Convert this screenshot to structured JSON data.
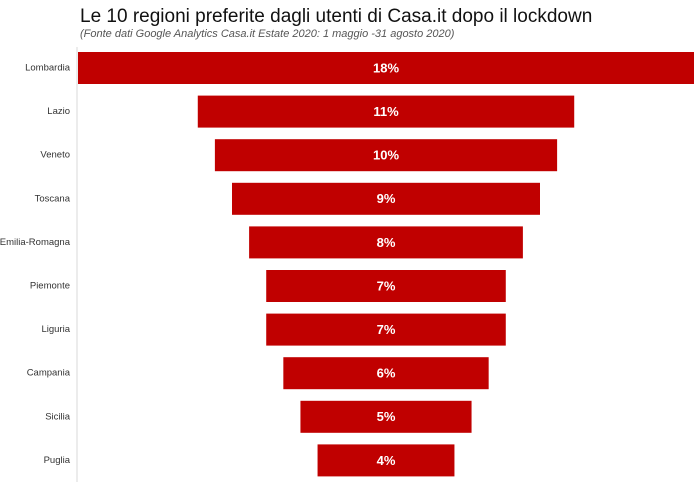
{
  "title": "Le 10 regioni preferite dagli utenti di Casa.it dopo il lockdown",
  "subtitle": "(Fonte dati Google Analytics Casa.it Estate 2020: 1 maggio -31 agosto 2020)",
  "colors": {
    "bar": "#c00000",
    "axis": "#d9d9d9"
  },
  "chart_data": {
    "type": "bar",
    "orientation": "horizontal",
    "style": "funnel",
    "categories": [
      "Lombardia",
      "Lazio",
      "Veneto",
      "Toscana",
      "Emilia-Romagna",
      "Piemonte",
      "Liguria",
      "Campania",
      "Sicilia",
      "Puglia"
    ],
    "values": [
      18,
      11,
      10,
      9,
      8,
      7,
      7,
      6,
      5,
      4
    ],
    "value_labels": [
      "18%",
      "11%",
      "10%",
      "9%",
      "8%",
      "7%",
      "7%",
      "6%",
      "5%",
      "4%"
    ],
    "unit": "%",
    "xlabel": "",
    "ylabel": "",
    "grid": false,
    "legend": "none"
  }
}
